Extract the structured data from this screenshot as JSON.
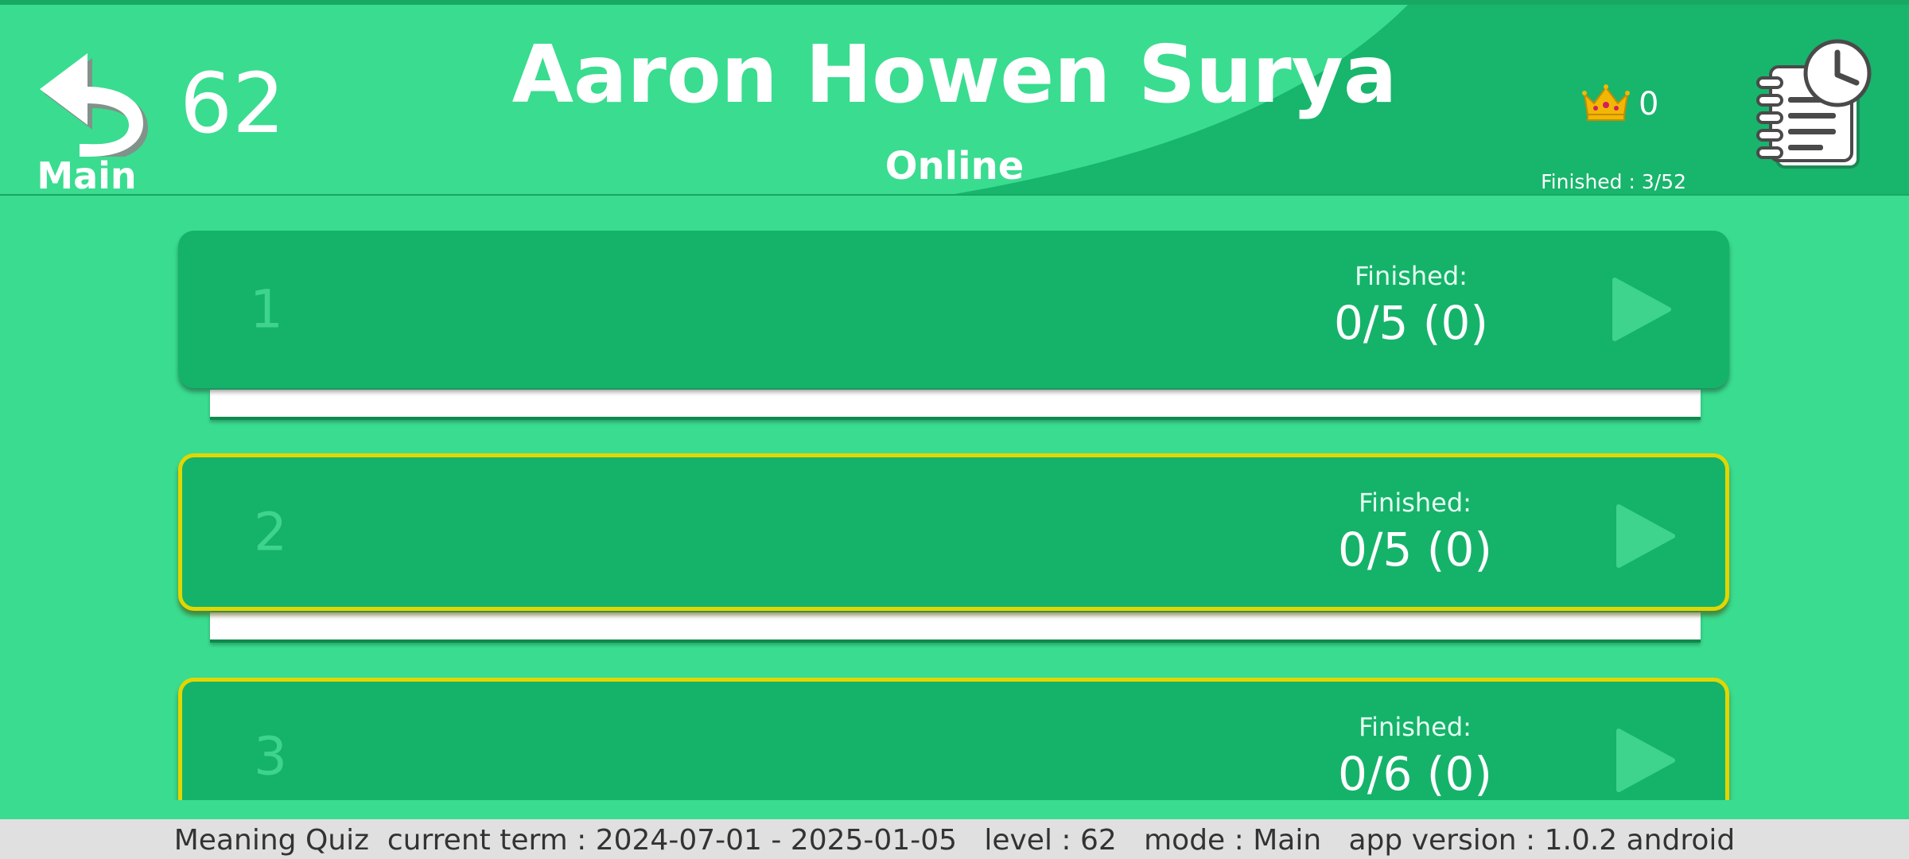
{
  "header": {
    "back_label": "Main",
    "level": "62",
    "player_name": "Aaron Howen Surya",
    "status": "Online",
    "crown_count": "0",
    "finished": "Finished : 3/52",
    "icons": {
      "back": "back-arrow-icon",
      "crown": "crown-icon",
      "history": "notepad-clock-icon"
    }
  },
  "levels": [
    {
      "number": "1",
      "finished_label": "Finished:",
      "finished_value": "0/5 (0)",
      "highlighted": false
    },
    {
      "number": "2",
      "finished_label": "Finished:",
      "finished_value": "0/5 (0)",
      "highlighted": true
    },
    {
      "number": "3",
      "finished_label": "Finished:",
      "finished_value": "0/6 (0)",
      "highlighted": true
    }
  ],
  "footer": {
    "text": "Meaning Quiz  current term : 2024-07-01 - 2025-01-05   level : 62   mode : Main   app version : 1.0.2 android"
  },
  "colors": {
    "background": "#3adc90",
    "header_dark": "#18b56c",
    "card": "#15b36a",
    "highlight_border": "#e3d600",
    "footer_bg": "#e0e0e0"
  }
}
